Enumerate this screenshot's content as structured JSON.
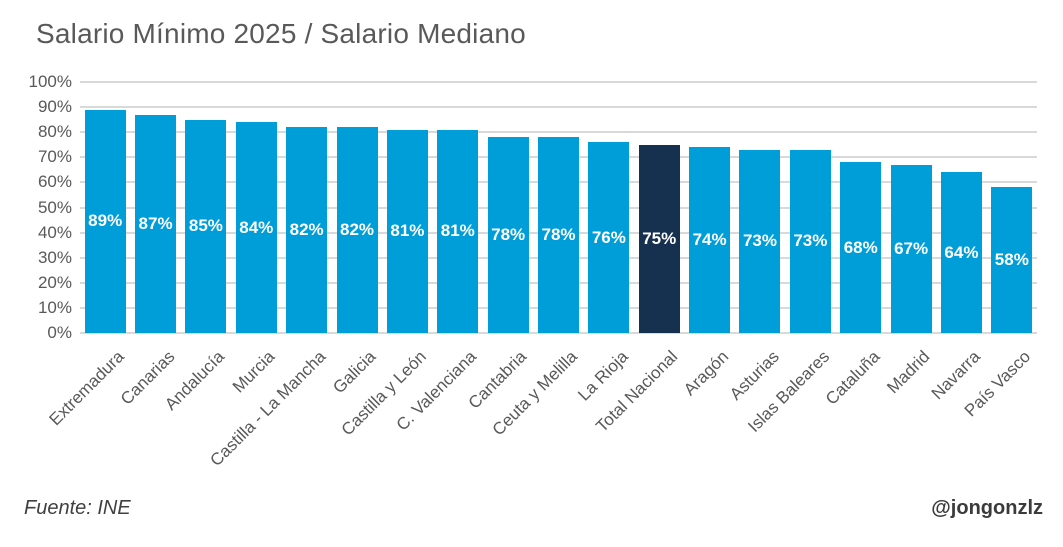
{
  "title": "Salario Mínimo 2025 / Salario Mediano",
  "footer": {
    "source": "Fuente: INE",
    "handle": "@jongonzlz"
  },
  "chart_data": {
    "type": "bar",
    "title": "Salario Mínimo 2025 / Salario Mediano",
    "categories": [
      "Extremadura",
      "Canarias",
      "Andalucía",
      "Murcia",
      "Castilla - La Mancha",
      "Galicia",
      "Castilla y León",
      "C. Valenciana",
      "Cantabria",
      "Ceuta y Melilla",
      "La Rioja",
      "Total Nacional",
      "Aragón",
      "Asturias",
      "Islas Baleares",
      "Cataluña",
      "Madrid",
      "Navarra",
      "País Vasco"
    ],
    "values": [
      89,
      87,
      85,
      84,
      82,
      82,
      81,
      81,
      78,
      78,
      76,
      75,
      74,
      73,
      73,
      68,
      67,
      64,
      58
    ],
    "value_labels": [
      "89%",
      "87%",
      "85%",
      "84%",
      "82%",
      "82%",
      "81%",
      "81%",
      "78%",
      "78%",
      "76%",
      "75%",
      "74%",
      "73%",
      "73%",
      "68%",
      "67%",
      "64%",
      "58%"
    ],
    "highlight_category": "Total Nacional",
    "xlabel": "",
    "ylabel": "",
    "ylim": [
      0,
      100
    ],
    "yticks": [
      "0%",
      "10%",
      "20%",
      "30%",
      "40%",
      "50%",
      "60%",
      "70%",
      "80%",
      "90%",
      "100%"
    ],
    "grid": true,
    "legend": false,
    "bar_color": "#009ED9",
    "highlight_color": "#16304F",
    "value_label_color": "#FFFFFF",
    "axis_text_color": "#595959",
    "gridline_color": "#D9D9D9",
    "source_note": "Fuente: INE",
    "author_handle": "@jongonzlz"
  }
}
